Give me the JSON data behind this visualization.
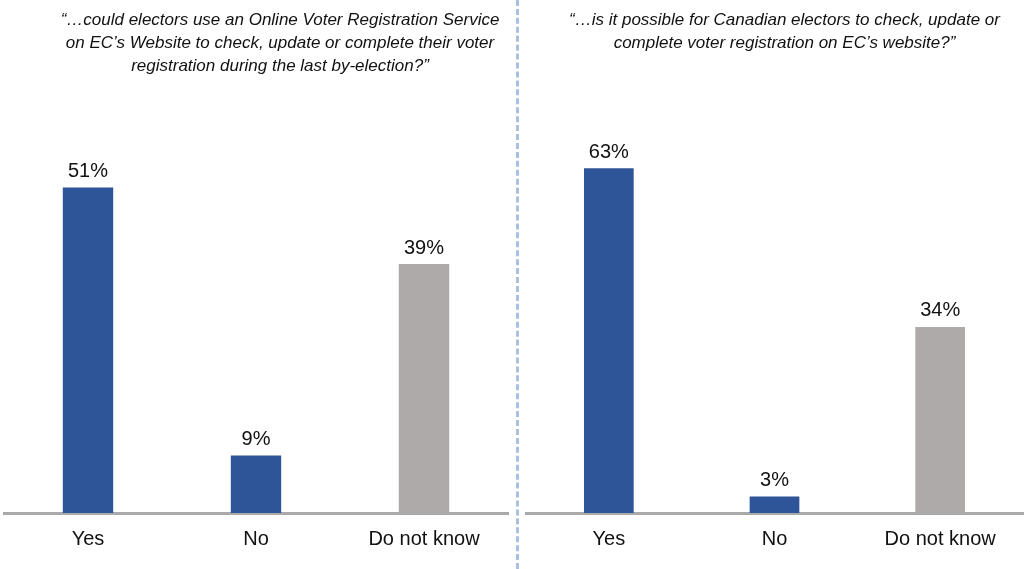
{
  "chart_data": [
    {
      "type": "bar",
      "title": "“…could electors use an Online Voter Registration Service on EC’s Website to check, update or complete their voter registration during the last by-election?”",
      "categories": [
        "Yes",
        "No",
        "Do not know"
      ],
      "values": [
        51,
        9,
        39
      ],
      "value_labels": [
        "51%",
        "9%",
        "39%"
      ],
      "colors": [
        "#2e5597",
        "#2e5597",
        "#aeaaa9"
      ],
      "grid": false,
      "legend": false,
      "tick_labels": "x"
    },
    {
      "type": "bar",
      "title": "“…is it possible for Canadian electors to check, update or complete voter registration on EC’s website?”",
      "categories": [
        "Yes",
        "No",
        "Do not know"
      ],
      "values": [
        63,
        3,
        34
      ],
      "value_labels": [
        "63%",
        "3%",
        "34%"
      ],
      "colors": [
        "#2e5597",
        "#2e5597",
        "#aeaaa9"
      ],
      "grid": false,
      "legend": false,
      "tick_labels": "x"
    }
  ]
}
